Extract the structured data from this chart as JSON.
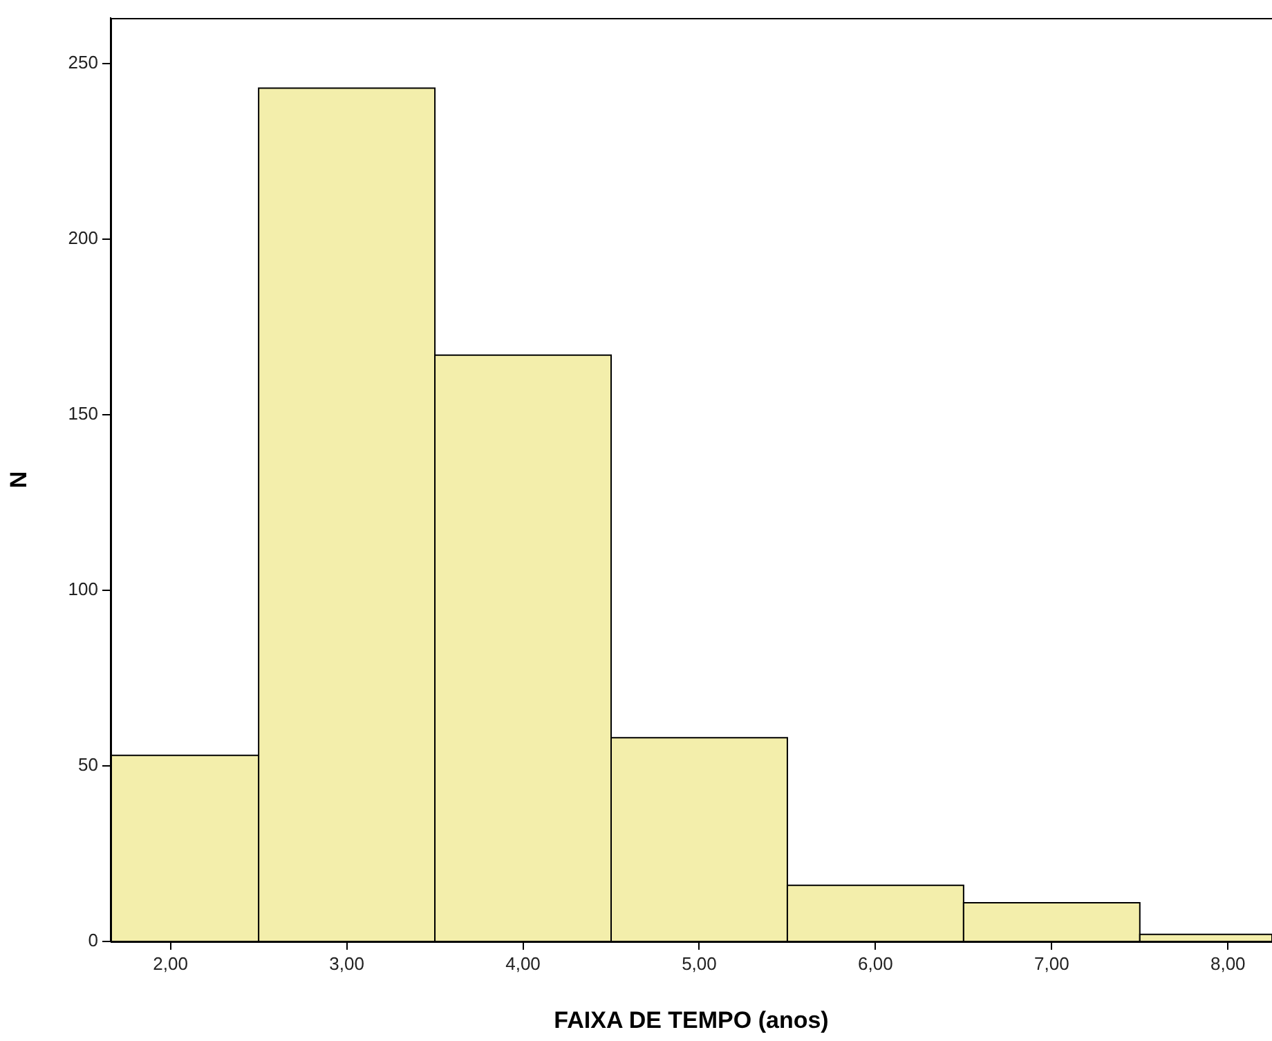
{
  "chart_data": {
    "type": "histogram",
    "xlabel": "FAIXA DE TEMPO (anos)",
    "ylabel": "N",
    "bins": [
      1.66,
      2.5,
      3.5,
      4.5,
      5.5,
      6.5,
      7.5,
      8.25
    ],
    "values": [
      53,
      243,
      167,
      58,
      16,
      11,
      2
    ],
    "color": "#f3eeab",
    "xlim": [
      1.66,
      8.25
    ],
    "xticks": [
      {
        "value": 2,
        "label": "2,00"
      },
      {
        "value": 3,
        "label": "3,00"
      },
      {
        "value": 4,
        "label": "4,00"
      },
      {
        "value": 5,
        "label": "5,00"
      },
      {
        "value": 6,
        "label": "6,00"
      },
      {
        "value": 7,
        "label": "7,00"
      },
      {
        "value": 8,
        "label": "8,00"
      }
    ],
    "ylim": [
      0,
      263
    ],
    "yticks": [
      0,
      50,
      100,
      150,
      200,
      250
    ],
    "grid": false,
    "legend": false
  }
}
